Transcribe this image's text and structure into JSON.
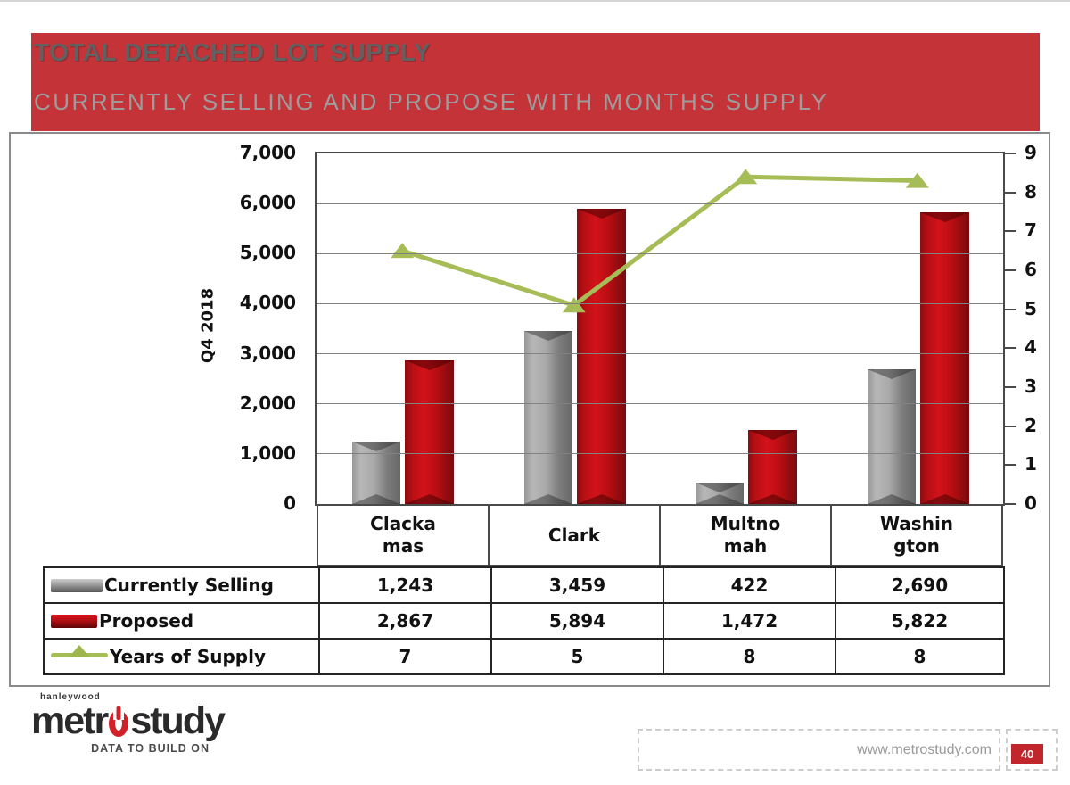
{
  "banner": {
    "title": "TOTAL DETACHED LOT SUPPLY",
    "subtitle": "CURRENTLY SELLING AND PROPOSE WITH MONTHS SUPPLY",
    "background_color": "#c43338",
    "title_color": "#616161",
    "subtitle_color": "#9c9c9c"
  },
  "chart_data": {
    "type": "bar-line-combo",
    "categories": [
      "Clackamas",
      "Clark",
      "Multnomah",
      "Washington"
    ],
    "category_display_labels": [
      "Clacka\nmas",
      "Clark",
      "Multno\nmah",
      "Washin\ngton"
    ],
    "left_axis": {
      "title": "Q4 2018",
      "min": 0,
      "max": 7000,
      "tick_step": 1000,
      "tick_labels": [
        "0",
        "1,000",
        "2,000",
        "3,000",
        "4,000",
        "5,000",
        "6,000",
        "7,000"
      ],
      "gridlines": true
    },
    "right_axis": {
      "min": 0,
      "max": 9,
      "tick_step": 1,
      "tick_labels": [
        "0",
        "1",
        "2",
        "3",
        "4",
        "5",
        "6",
        "7",
        "8",
        "9"
      ]
    },
    "series": [
      {
        "name": "Currently Selling",
        "type": "bar",
        "axis": "left",
        "color": "#9e9e9e",
        "values": [
          1243,
          3459,
          422,
          2690
        ]
      },
      {
        "name": "Proposed",
        "type": "bar",
        "axis": "left",
        "color": "#b50f15",
        "values": [
          2867,
          5894,
          1472,
          5822
        ]
      },
      {
        "name": "Years of Supply",
        "type": "line",
        "axis": "right",
        "color": "#a6bd57",
        "marker": "triangle",
        "values": [
          6.5,
          5.1,
          8.4,
          8.3
        ]
      }
    ],
    "data_table": {
      "rows": [
        {
          "label": "Currently Selling",
          "swatch": "bar-gray",
          "values": [
            "1,243",
            "3,459",
            "422",
            "2,690"
          ]
        },
        {
          "label": "Proposed",
          "swatch": "bar-red",
          "values": [
            "2,867",
            "5,894",
            "1,472",
            "5,822"
          ]
        },
        {
          "label": "Years of Supply",
          "swatch": "line-green",
          "values": [
            "7",
            "5",
            "8",
            "8"
          ]
        }
      ]
    },
    "legend_position": "table-left"
  },
  "footer": {
    "logo_top": "hanleywood",
    "logo_name_pre": "metr",
    "logo_name_post": "study",
    "logo_tagline": "DATA TO BUILD ON",
    "website": "www.metrostudy.com",
    "page_number": "40"
  }
}
